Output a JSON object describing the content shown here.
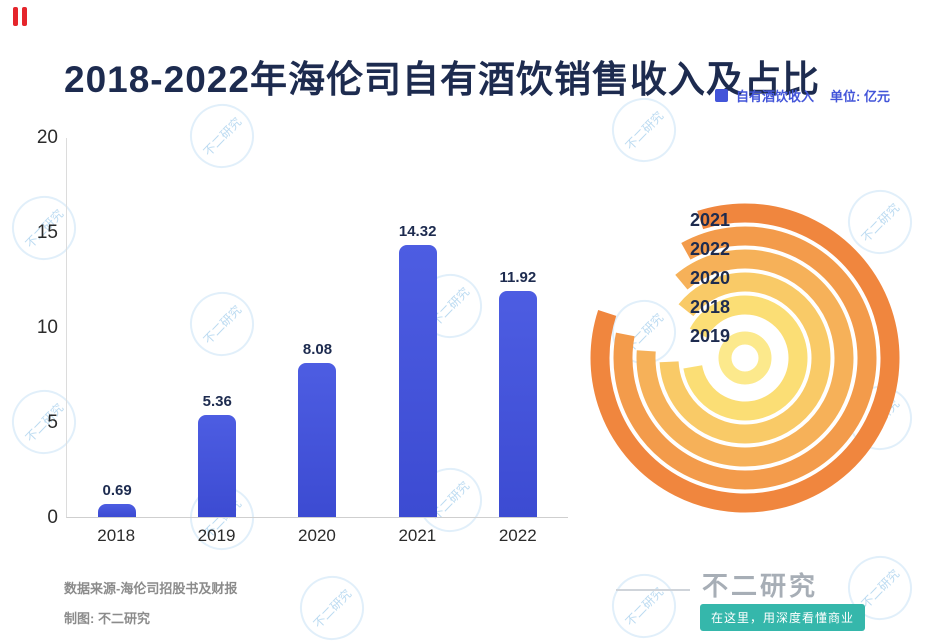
{
  "page": {
    "title": "2018-2022年海伦司自有酒饮销售收入及占比",
    "legend": {
      "label": "自有酒饮收入",
      "unit": "单位: 亿元",
      "swatch_color": "#4355D9"
    },
    "footer": {
      "source": "数据来源-海伦司招股书及财报",
      "credit": "制图: 不二研究"
    },
    "brand": {
      "name": "不二研究",
      "tagline": "在这里，用深度看懂商业",
      "accent_color": "#35B7AB"
    },
    "watermark_text": "不二研究"
  },
  "chart_data": [
    {
      "type": "bar",
      "title": "2018-2022年海伦司自有酒饮销售收入及占比",
      "categories": [
        "2018",
        "2019",
        "2020",
        "2021",
        "2022"
      ],
      "values": [
        0.69,
        5.36,
        8.08,
        14.32,
        11.92
      ],
      "series_name": "自有酒饮收入",
      "unit": "亿元",
      "ylim": [
        0,
        20
      ],
      "yticks": [
        0,
        5,
        10,
        15,
        20
      ],
      "bar_color": "#4355D9",
      "grid": false,
      "legend_position": "top-right"
    },
    {
      "type": "radial",
      "description": "concentric proportion rings, outer to inner",
      "labels": [
        "2021",
        "2022",
        "2020",
        "2018",
        "2019"
      ],
      "ring_colors": [
        "#F0863E",
        "#F39B4B",
        "#F6B159",
        "#F9CA67",
        "#FBDE75"
      ],
      "center_color": "#FCE98C"
    }
  ]
}
